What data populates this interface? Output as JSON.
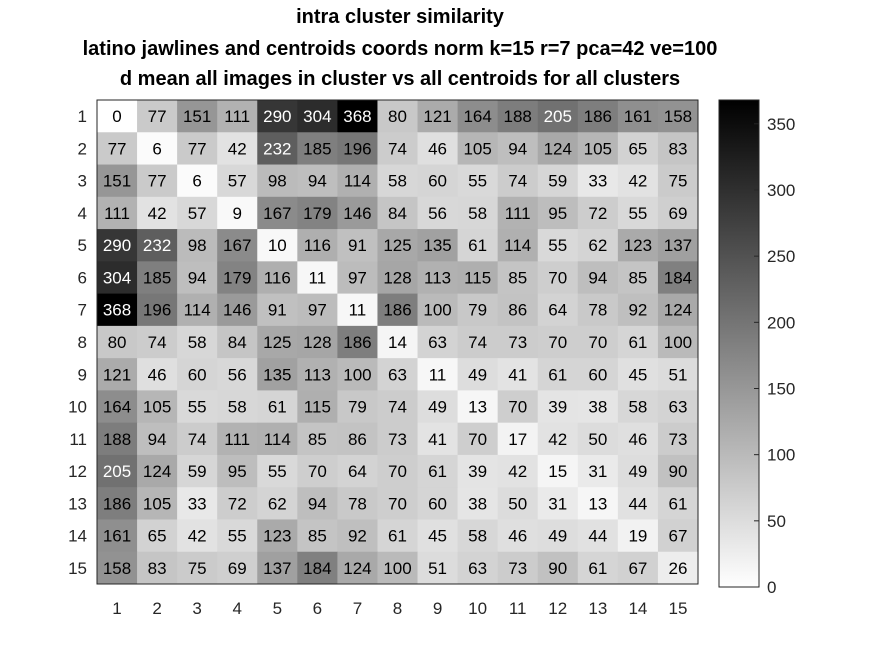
{
  "chart_data": {
    "type": "heatmap",
    "title": "intra cluster similarity",
    "subtitle": "latino jawlines and centroids coords norm k=15 r=7 pca=42 ve=100",
    "subtitle2": "d mean all images in cluster vs all centroids for all clusters",
    "x_tick_labels": [
      "1",
      "2",
      "3",
      "4",
      "5",
      "6",
      "7",
      "8",
      "9",
      "10",
      "11",
      "12",
      "13",
      "14",
      "15"
    ],
    "y_tick_labels": [
      "1",
      "2",
      "3",
      "4",
      "5",
      "6",
      "7",
      "8",
      "9",
      "10",
      "11",
      "12",
      "13",
      "14",
      "15"
    ],
    "colormap": "gray-reversed",
    "color_range": [
      0,
      368
    ],
    "colorbar_ticks": [
      0,
      50,
      100,
      150,
      200,
      250,
      300,
      350
    ],
    "values": [
      [
        0,
        77,
        151,
        111,
        290,
        304,
        368,
        80,
        121,
        164,
        188,
        205,
        186,
        161,
        158
      ],
      [
        77,
        6,
        77,
        42,
        232,
        185,
        196,
        74,
        46,
        105,
        94,
        124,
        105,
        65,
        83
      ],
      [
        151,
        77,
        6,
        57,
        98,
        94,
        114,
        58,
        60,
        55,
        74,
        59,
        33,
        42,
        75
      ],
      [
        111,
        42,
        57,
        9,
        167,
        179,
        146,
        84,
        56,
        58,
        111,
        95,
        72,
        55,
        69
      ],
      [
        290,
        232,
        98,
        167,
        10,
        116,
        91,
        125,
        135,
        61,
        114,
        55,
        62,
        123,
        137
      ],
      [
        304,
        185,
        94,
        179,
        116,
        11,
        97,
        128,
        113,
        115,
        85,
        70,
        94,
        85,
        184
      ],
      [
        368,
        196,
        114,
        146,
        91,
        97,
        11,
        186,
        100,
        79,
        86,
        64,
        78,
        92,
        124
      ],
      [
        80,
        74,
        58,
        84,
        125,
        128,
        186,
        14,
        63,
        74,
        73,
        70,
        70,
        61,
        100
      ],
      [
        121,
        46,
        60,
        56,
        135,
        113,
        100,
        63,
        11,
        49,
        41,
        61,
        60,
        45,
        51
      ],
      [
        164,
        105,
        55,
        58,
        61,
        115,
        79,
        74,
        49,
        13,
        70,
        39,
        38,
        58,
        63
      ],
      [
        188,
        94,
        74,
        111,
        114,
        85,
        86,
        73,
        41,
        70,
        17,
        42,
        50,
        46,
        73
      ],
      [
        205,
        124,
        59,
        95,
        55,
        70,
        64,
        70,
        61,
        39,
        42,
        15,
        31,
        49,
        90
      ],
      [
        186,
        105,
        33,
        72,
        62,
        94,
        78,
        70,
        60,
        38,
        50,
        31,
        13,
        44,
        61
      ],
      [
        161,
        65,
        42,
        55,
        123,
        85,
        92,
        61,
        45,
        58,
        46,
        49,
        44,
        19,
        67
      ],
      [
        158,
        83,
        75,
        69,
        137,
        184,
        124,
        100,
        51,
        63,
        73,
        90,
        61,
        67,
        26
      ]
    ]
  }
}
